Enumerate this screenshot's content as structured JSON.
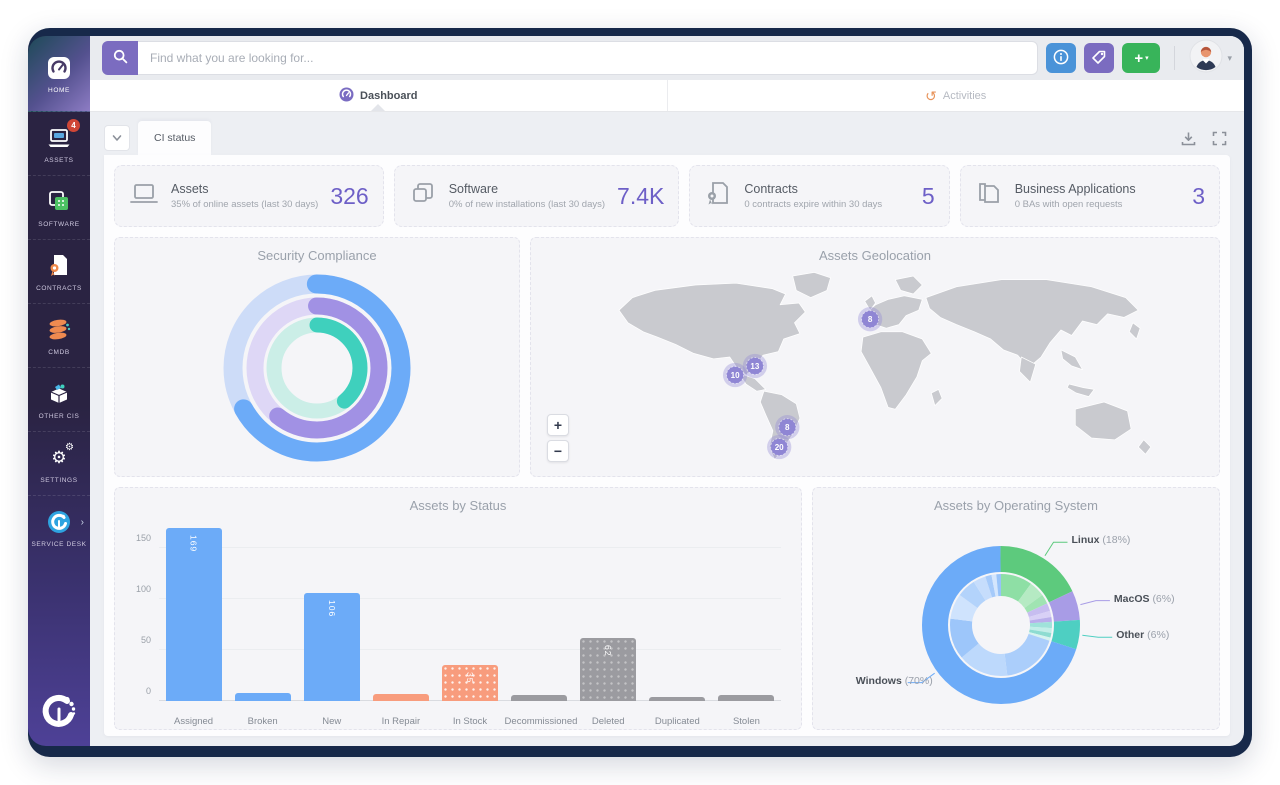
{
  "sidebar": {
    "items": [
      {
        "id": "home",
        "label": "HOME",
        "active": true
      },
      {
        "id": "assets",
        "label": "ASSETS",
        "badge": "4"
      },
      {
        "id": "software",
        "label": "SOFTWARE"
      },
      {
        "id": "contracts",
        "label": "CONTRACTS"
      },
      {
        "id": "cmdb",
        "label": "CMDB"
      },
      {
        "id": "other-cis",
        "label": "OTHER CIs"
      },
      {
        "id": "settings",
        "label": "SETTINGS"
      },
      {
        "id": "service-desk",
        "label": "SERVICE DESK"
      }
    ]
  },
  "topbar": {
    "search_placeholder": "Find what you are looking for..."
  },
  "tabs": [
    {
      "label": "Dashboard",
      "active": true
    },
    {
      "label": "Activities",
      "active": false
    }
  ],
  "ci": {
    "tab_label": "CI status"
  },
  "kpis": [
    {
      "title": "Assets",
      "subtitle": "35% of online assets (last 30 days)",
      "value": "326"
    },
    {
      "title": "Software",
      "subtitle": "0% of new installations (last 30 days)",
      "value": "7.4K"
    },
    {
      "title": "Contracts",
      "subtitle": "0 contracts expire within 30 days",
      "value": "5"
    },
    {
      "title": "Business Applications",
      "subtitle": "0 BAs with open requests",
      "value": "3"
    }
  ],
  "icons": {
    "gear": "⚙",
    "history": "↺",
    "chevron_down": "▾",
    "plus": "+",
    "zoom_in": "+",
    "zoom_out": "−",
    "service_desk_arrow": "›"
  },
  "colors": {
    "accent_purple": "#6d5fc7",
    "bar_blue": "#6cabf8",
    "bar_orange": "#f89c7d",
    "bar_gray": "#9b9ba0",
    "ring_blue": "#6cabf8",
    "ring_purple": "#a191e4",
    "ring_teal": "#3fd0bd",
    "os_green": "#5dca7d",
    "os_purple": "#a89ce6",
    "os_teal": "#4ecfc2",
    "os_blue": "#6cabf8",
    "marker_purple": "#8f86d4",
    "badge_red": "#cf4636",
    "frame_navy": "#17294a"
  },
  "chart_data": [
    {
      "type": "donut",
      "title": "Security Compliance",
      "rings": [
        {
          "name": "outer",
          "pct": 67,
          "color": "#6cabf8",
          "track": "#cddcf8"
        },
        {
          "name": "middle",
          "pct": 61,
          "color": "#a191e4",
          "track": "#ded7f6"
        },
        {
          "name": "inner",
          "pct": 39,
          "color": "#3fd0bd",
          "track": "#cbeee7"
        }
      ]
    },
    {
      "type": "map",
      "title": "Assets Geolocation",
      "zoom_in": "+",
      "zoom_out": "−",
      "markers": [
        {
          "region": "europe",
          "value": 8,
          "x": 324,
          "y": 58
        },
        {
          "region": "us-southeast",
          "value": 13,
          "x": 196,
          "y": 110
        },
        {
          "region": "mexico",
          "value": 10,
          "x": 174,
          "y": 120
        },
        {
          "region": "uruguay",
          "value": 8,
          "x": 232,
          "y": 178
        },
        {
          "region": "argentina-south",
          "value": 20,
          "x": 223,
          "y": 200
        }
      ]
    },
    {
      "type": "bar",
      "title": "Assets by Status",
      "categories": [
        "Assigned",
        "Broken",
        "New",
        "In Repair",
        "In Stock",
        "Decommissioned",
        "Deleted",
        "Duplicated",
        "Stolen"
      ],
      "values": [
        169,
        8,
        106,
        7,
        35,
        6,
        62,
        4,
        6
      ],
      "colors": [
        "blue",
        "blue",
        "blue",
        "orange",
        "orange_dotted",
        "gray",
        "gray_dotted",
        "gray",
        "gray"
      ],
      "yticks": [
        0,
        50,
        100,
        150
      ],
      "ymax": 178,
      "label_min": 30,
      "xlabel": "",
      "ylabel": ""
    },
    {
      "type": "donut",
      "title": "Assets by Operating System",
      "series": [
        {
          "name": "Linux",
          "pct": 18,
          "color": "#5dca7d"
        },
        {
          "name": "MacOS",
          "pct": 6,
          "color": "#a89ce6"
        },
        {
          "name": "Other",
          "pct": 6,
          "color": "#4ecfc2"
        },
        {
          "name": "Windows",
          "pct": 70,
          "color": "#6cabf8"
        }
      ],
      "inner": [
        {
          "pct": 10,
          "color": "#8edfa5"
        },
        {
          "pct": 5,
          "color": "#b5eac3"
        },
        {
          "pct": 3,
          "color": "#a0e4b2"
        },
        {
          "pct": 2.5,
          "color": "#c7bdf0"
        },
        {
          "pct": 2,
          "color": "#d8d0f6"
        },
        {
          "pct": 1.5,
          "color": "#b9aeeb"
        },
        {
          "pct": 2,
          "color": "#9fe2da"
        },
        {
          "pct": 1.5,
          "color": "#c2eee8"
        },
        {
          "pct": 1.5,
          "color": "#8ddcd1"
        },
        {
          "pct": 1,
          "color": "#d6f3ef"
        },
        {
          "pct": 18,
          "color": "#abcefb"
        },
        {
          "pct": 16,
          "color": "#bdd9fc"
        },
        {
          "pct": 13,
          "color": "#9dc6fa"
        },
        {
          "pct": 8,
          "color": "#cfe3fd"
        },
        {
          "pct": 6,
          "color": "#b3d3fb"
        },
        {
          "pct": 4,
          "color": "#c6ddfc"
        },
        {
          "pct": 2,
          "color": "#a5cafa"
        },
        {
          "pct": 1.5,
          "color": "#d4e6fd"
        },
        {
          "pct": 1.5,
          "color": "#98c3f9"
        }
      ]
    }
  ]
}
